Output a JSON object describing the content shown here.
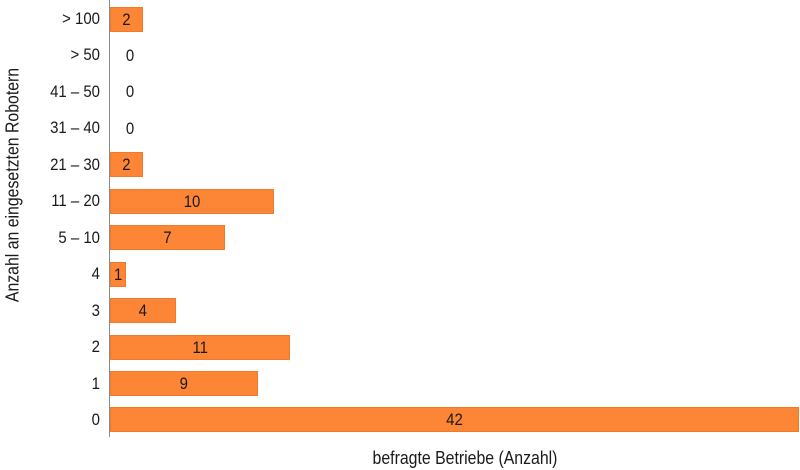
{
  "chart_data": {
    "type": "bar",
    "orientation": "horizontal",
    "title": "",
    "xlabel": "befragte Betriebe (Anzahl)",
    "ylabel": "Anzahl an eingesetzten Robotern",
    "categories": [
      "> 100",
      "> 50",
      "41 – 50",
      "31 – 40",
      "21 – 30",
      "11 – 20",
      "5 – 10",
      "4",
      "3",
      "2",
      "1",
      "0"
    ],
    "values": [
      2,
      0,
      0,
      0,
      2,
      10,
      7,
      1,
      4,
      11,
      9,
      42
    ],
    "xlim": [
      0,
      42
    ],
    "grid": false,
    "legend": null,
    "bar_color": "#fc8536",
    "data_labels": true
  },
  "axis": {
    "x_title": "befragte Betriebe (Anzahl)",
    "y_title": "Anzahl an eingesetzten Robotern"
  }
}
